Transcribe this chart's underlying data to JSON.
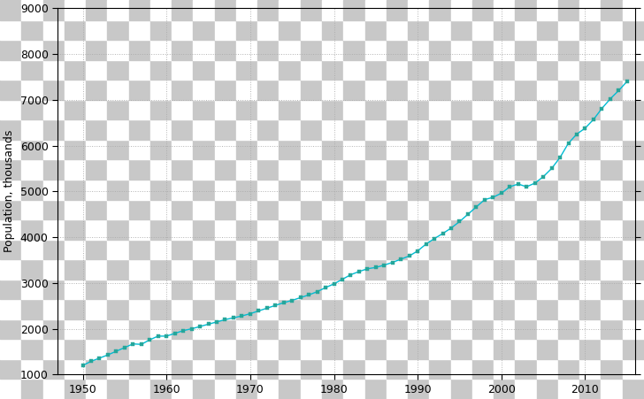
{
  "title": "",
  "ylabel": "Population, thousands",
  "xlabel": "",
  "xlim": [
    1947,
    2016
  ],
  "ylim": [
    1000,
    9000
  ],
  "xticks": [
    1950,
    1960,
    1970,
    1980,
    1990,
    2000,
    2010
  ],
  "yticks": [
    1000,
    2000,
    3000,
    4000,
    5000,
    6000,
    7000,
    8000,
    9000
  ],
  "line_color": "#00BCD4",
  "marker_color": "#26A69A",
  "grid_color": "#aaaaaa",
  "checker_light": "#ffffff",
  "checker_dark": "#c8c8c8",
  "years": [
    1950,
    1951,
    1952,
    1953,
    1954,
    1955,
    1956,
    1957,
    1958,
    1959,
    1960,
    1961,
    1962,
    1963,
    1964,
    1965,
    1966,
    1967,
    1968,
    1969,
    1970,
    1971,
    1972,
    1973,
    1974,
    1975,
    1976,
    1977,
    1978,
    1979,
    1980,
    1981,
    1982,
    1983,
    1984,
    1985,
    1986,
    1987,
    1988,
    1989,
    1990,
    1991,
    1992,
    1993,
    1994,
    1995,
    1996,
    1997,
    1998,
    1999,
    2000,
    2001,
    2002,
    2003,
    2004,
    2005,
    2006,
    2007,
    2008,
    2009,
    2010,
    2011,
    2012,
    2013,
    2014,
    2015
  ],
  "population": [
    1200,
    1290,
    1360,
    1430,
    1510,
    1590,
    1670,
    1660,
    1760,
    1840,
    1840,
    1900,
    1960,
    2000,
    2050,
    2100,
    2150,
    2200,
    2240,
    2280,
    2330,
    2390,
    2450,
    2510,
    2570,
    2620,
    2680,
    2740,
    2810,
    2900,
    2980,
    3080,
    3180,
    3250,
    3310,
    3340,
    3390,
    3450,
    3520,
    3590,
    3700,
    3850,
    3970,
    4080,
    4200,
    4340,
    4500,
    4660,
    4820,
    4870,
    4960,
    5100,
    5160,
    5100,
    5180,
    5320,
    5500,
    5740,
    6050,
    6250,
    6380,
    6570,
    6810,
    7020,
    7200,
    7400
  ],
  "checker_nx": 30,
  "checker_ny": 20
}
